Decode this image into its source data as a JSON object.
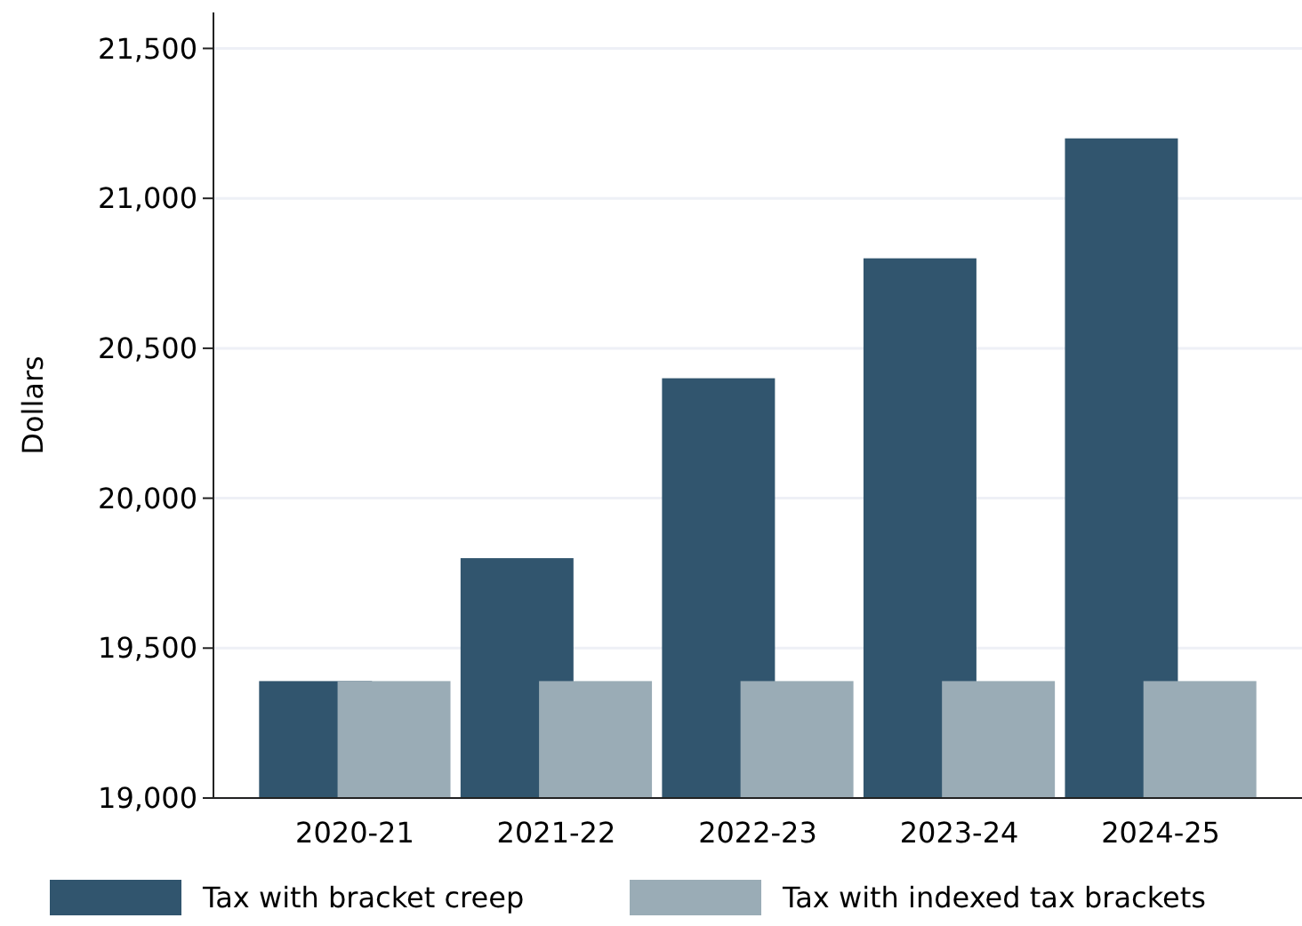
{
  "chart_data": {
    "type": "bar",
    "ylabel": "Dollars",
    "categories": [
      "2020-21",
      "2021-22",
      "2022-23",
      "2023-24",
      "2024-25"
    ],
    "series": [
      {
        "name": "Tax with bracket creep",
        "color": "#31556e",
        "values": [
          19390,
          19800,
          20400,
          20800,
          21200
        ]
      },
      {
        "name": "Tax with indexed tax brackets",
        "color": "#9aacb6",
        "values": [
          19390,
          19390,
          19390,
          19390,
          19390
        ]
      }
    ],
    "ylim": [
      19000,
      21620
    ],
    "yticks": [
      {
        "value": 19000,
        "label": "19,000"
      },
      {
        "value": 19500,
        "label": "19,500"
      },
      {
        "value": 20000,
        "label": "20,000"
      },
      {
        "value": 20500,
        "label": "20,500"
      },
      {
        "value": 21000,
        "label": "21,000"
      },
      {
        "value": 21500,
        "label": "21,500"
      }
    ],
    "grid": "y",
    "legend": "bottom"
  }
}
